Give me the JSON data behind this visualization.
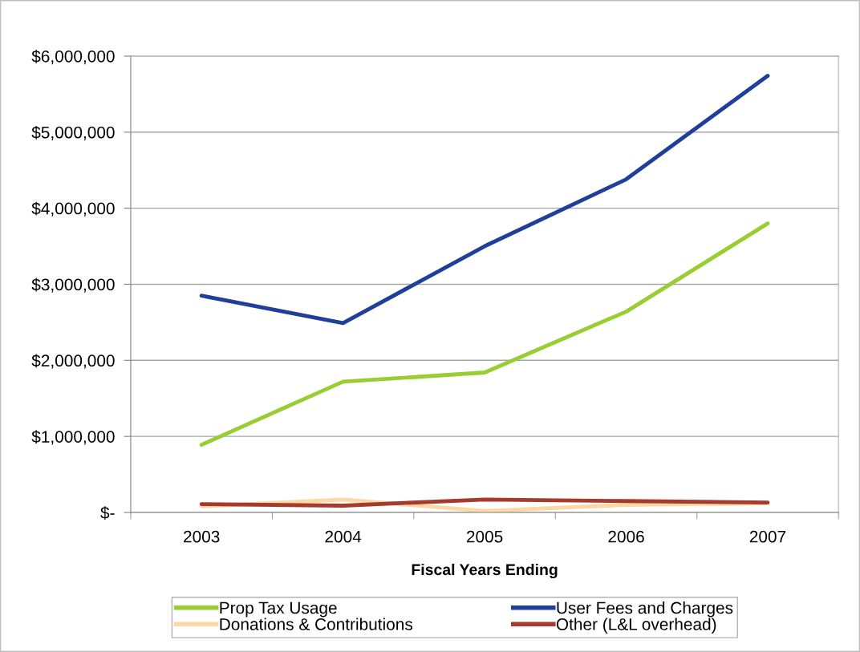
{
  "chart_data": {
    "type": "line",
    "xlabel": "Fiscal Years Ending",
    "categories": [
      "2003",
      "2004",
      "2005",
      "2006",
      "2007"
    ],
    "series": [
      {
        "name": "Prop Tax Usage",
        "color": "#9acd32",
        "values": [
          890000,
          1720000,
          1840000,
          2640000,
          3800000
        ]
      },
      {
        "name": "User Fees and Charges",
        "color": "#1f3f99",
        "values": [
          2850000,
          2490000,
          3500000,
          4380000,
          5740000
        ]
      },
      {
        "name": "Donations & Contributions",
        "color": "#fcd9a4",
        "values": [
          80000,
          170000,
          20000,
          100000,
          120000
        ]
      },
      {
        "name": "Other (L&L overhead)",
        "color": "#a63a2c",
        "values": [
          110000,
          90000,
          170000,
          150000,
          130000
        ]
      }
    ],
    "ylim": [
      0,
      6000000
    ],
    "yticks": [
      {
        "value": 0,
        "label": "$-"
      },
      {
        "value": 1000000,
        "label": "$1,000,000"
      },
      {
        "value": 2000000,
        "label": "$2,000,000"
      },
      {
        "value": 3000000,
        "label": "$3,000,000"
      },
      {
        "value": 4000000,
        "label": "$4,000,000"
      },
      {
        "value": 5000000,
        "label": "$5,000,000"
      },
      {
        "value": 6000000,
        "label": "$6,000,000"
      }
    ],
    "grid": "y",
    "legend": "bottom",
    "marker": "none",
    "line_style": "solid"
  }
}
